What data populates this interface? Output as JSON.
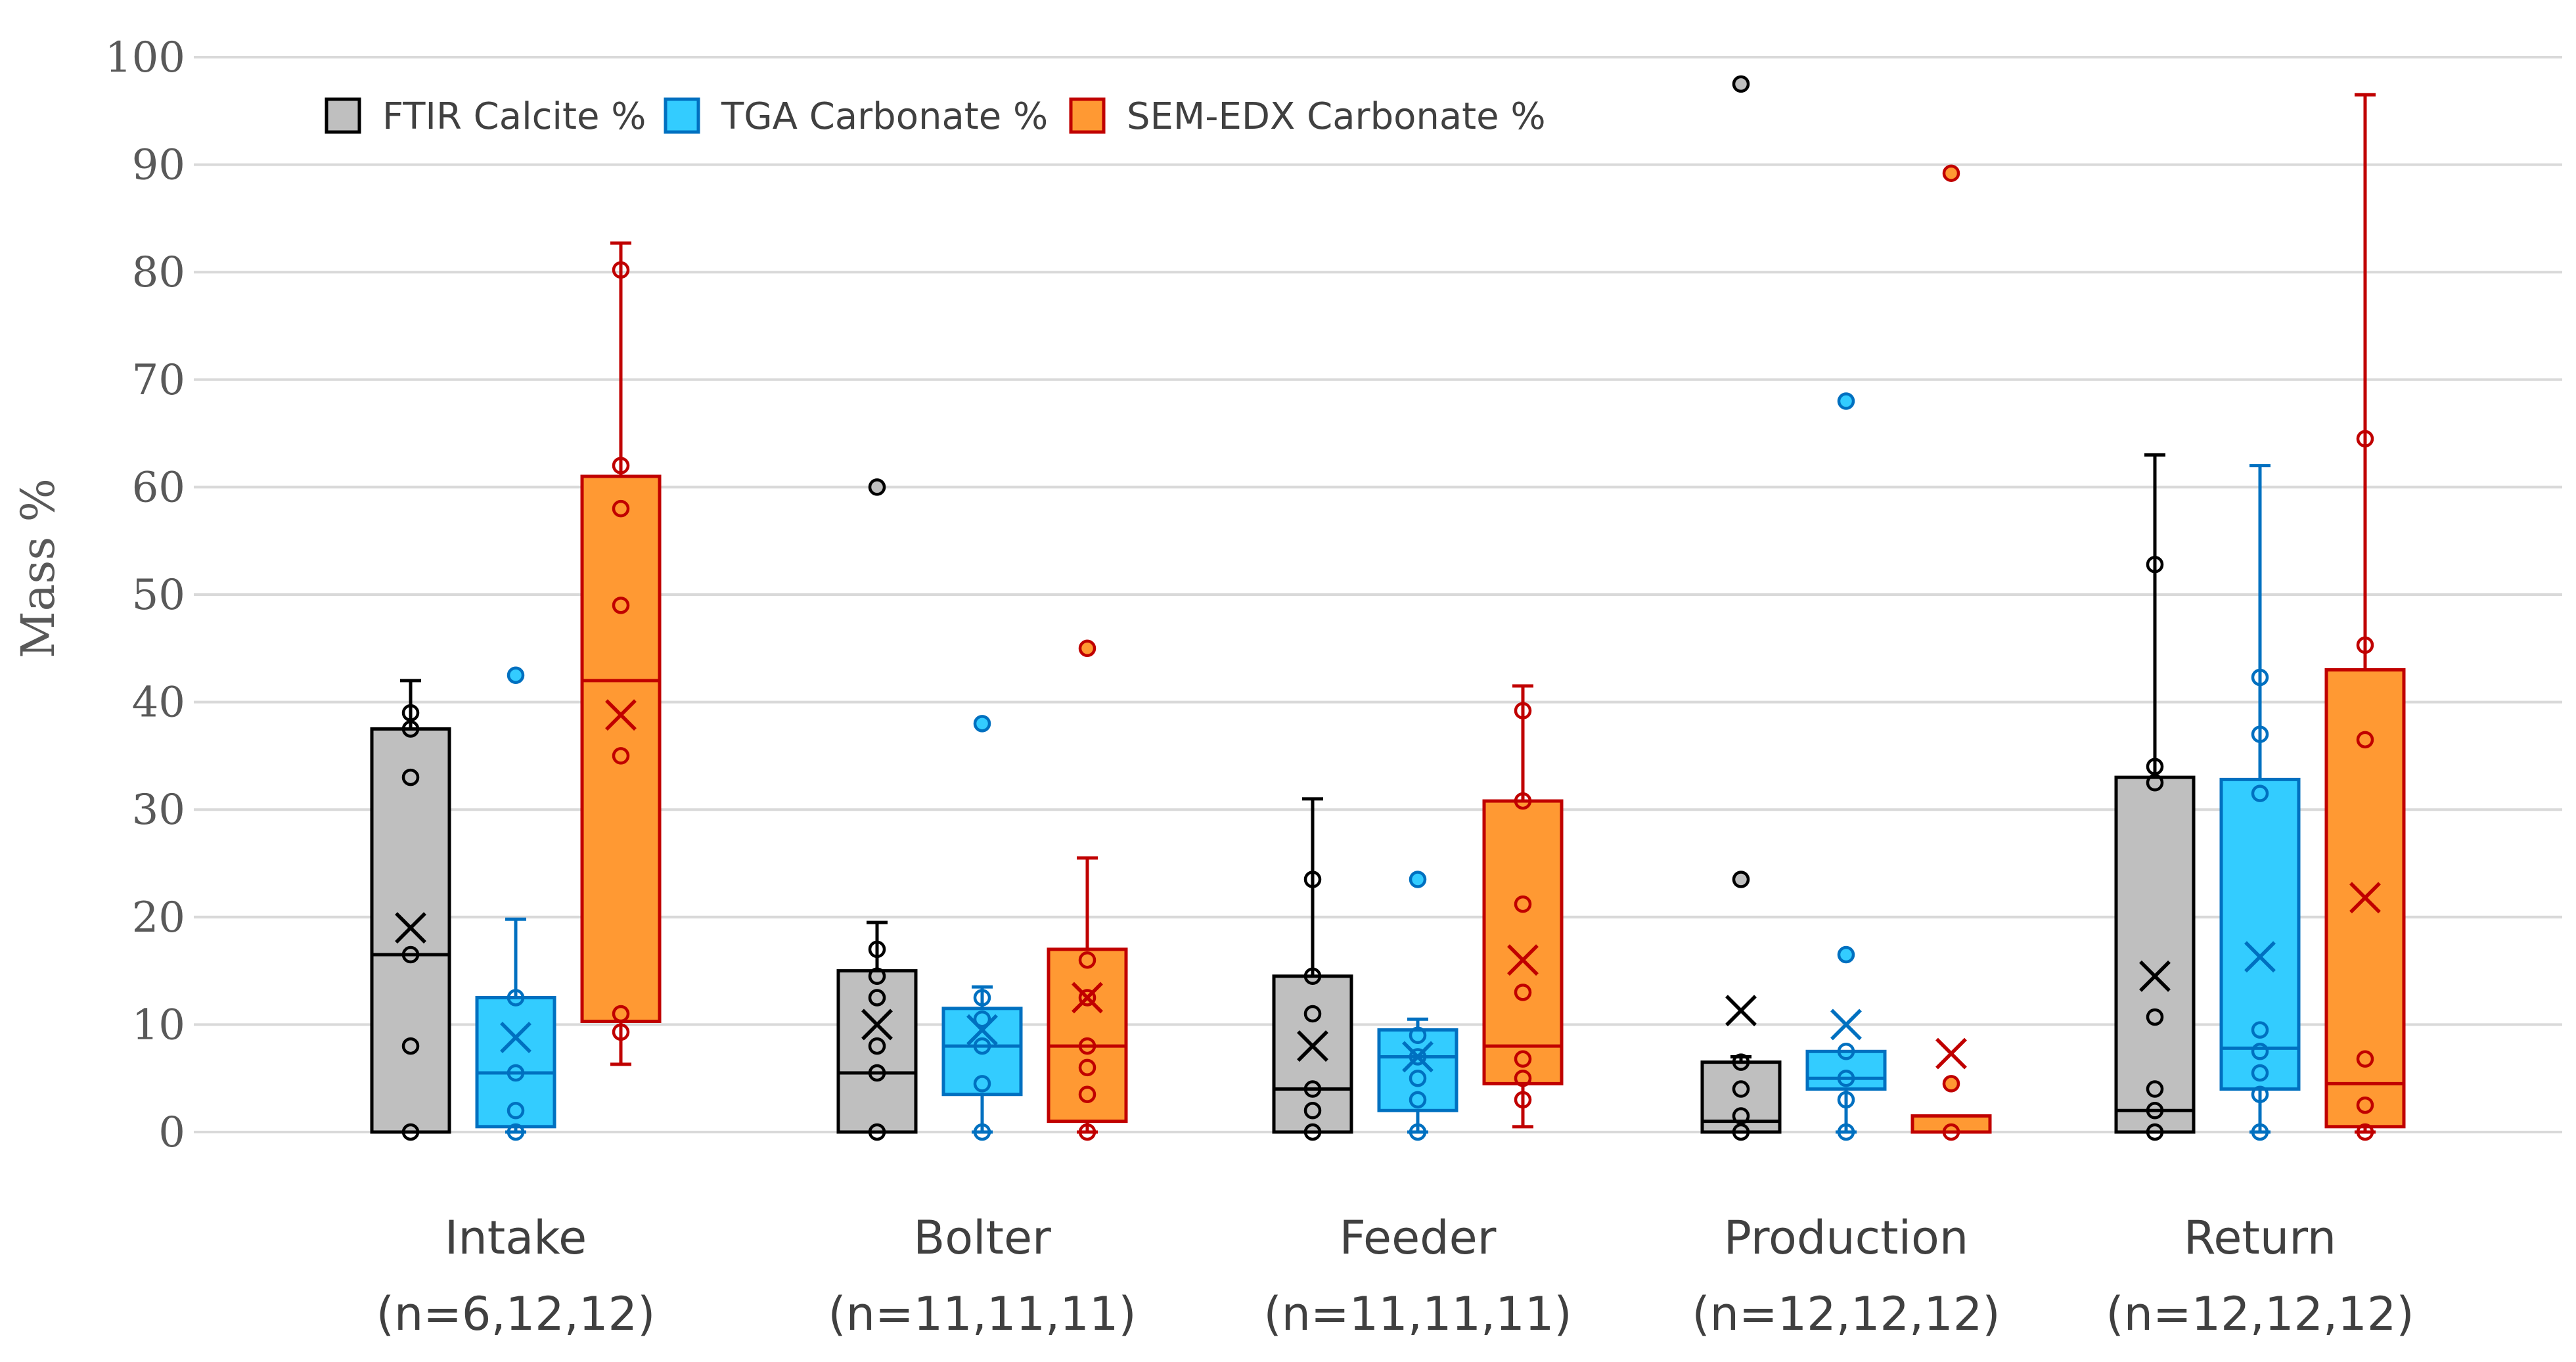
{
  "chart_data": {
    "type": "box",
    "title": "",
    "xlabel": "",
    "ylabel": "Mass %",
    "ylim": [
      0,
      100
    ],
    "yticks": [
      0,
      10,
      20,
      30,
      40,
      50,
      60,
      70,
      80,
      90,
      100
    ],
    "grid": true,
    "legend_position": "top-left",
    "categories": [
      {
        "name": "Intake",
        "n_label": "(n=6,12,12)"
      },
      {
        "name": "Bolter",
        "n_label": "(n=11,11,11)"
      },
      {
        "name": "Feeder",
        "n_label": "(n=11,11,11)"
      },
      {
        "name": "Production",
        "n_label": "(n=12,12,12)"
      },
      {
        "name": "Return",
        "n_label": "(n=12,12,12)"
      }
    ],
    "series": [
      {
        "name": "FTIR Calcite %",
        "fill": "#bfbfbf",
        "stroke": "#000000",
        "boxes": [
          {
            "q1": 0,
            "median": 16.5,
            "q3": 37.5,
            "whisker_low": 0,
            "whisker_high": 42,
            "mean": 19,
            "points": [
              0,
              8,
              16.5,
              33,
              37.5,
              39
            ],
            "outliers": []
          },
          {
            "q1": 0,
            "median": 5.5,
            "q3": 15,
            "whisker_low": 0,
            "whisker_high": 19.5,
            "mean": 10,
            "points": [
              0,
              5.5,
              8,
              12.5,
              14.5,
              17
            ],
            "outliers": [
              60
            ]
          },
          {
            "q1": 0,
            "median": 4,
            "q3": 14.5,
            "whisker_low": 0,
            "whisker_high": 31,
            "mean": 8,
            "points": [
              0,
              2,
              4,
              11,
              14.5,
              23.5
            ],
            "outliers": []
          },
          {
            "q1": 0,
            "median": 1,
            "q3": 6.5,
            "whisker_low": 0,
            "whisker_high": 7,
            "mean": 11.3,
            "points": [
              0,
              1.5,
              4,
              6.5
            ],
            "outliers": [
              23.5,
              97.5
            ]
          },
          {
            "q1": 0,
            "median": 2,
            "q3": 33,
            "whisker_low": 0,
            "whisker_high": 63,
            "mean": 14.5,
            "points": [
              0,
              2,
              4,
              10.7,
              32.5,
              34,
              52.8
            ],
            "outliers": []
          }
        ]
      },
      {
        "name": "TGA Carbonate %",
        "fill": "#33ccff",
        "stroke": "#0070c0",
        "boxes": [
          {
            "q1": 0.5,
            "median": 5.5,
            "q3": 12.5,
            "whisker_low": 0,
            "whisker_high": 19.8,
            "mean": 8.8,
            "points": [
              0,
              2,
              5.5,
              12.5
            ],
            "outliers": [
              42.5
            ]
          },
          {
            "q1": 3.5,
            "median": 8,
            "q3": 11.5,
            "whisker_low": 0,
            "whisker_high": 13.5,
            "mean": 9.5,
            "points": [
              0,
              4.5,
              8,
              10.5,
              12.5
            ],
            "outliers": [
              38
            ]
          },
          {
            "q1": 2,
            "median": 7,
            "q3": 9.5,
            "whisker_low": 0,
            "whisker_high": 10.5,
            "mean": 7,
            "points": [
              0,
              3,
              5,
              7,
              9
            ],
            "outliers": [
              23.5
            ]
          },
          {
            "q1": 4,
            "median": 5,
            "q3": 7.5,
            "whisker_low": 0,
            "whisker_high": 7.5,
            "mean": 10,
            "points": [
              0,
              3,
              5,
              7.5
            ],
            "outliers": [
              16.5,
              68
            ]
          },
          {
            "q1": 4,
            "median": 7.8,
            "q3": 32.8,
            "whisker_low": 0,
            "whisker_high": 62,
            "mean": 16.3,
            "points": [
              0,
              3.5,
              5.5,
              7.5,
              9.5,
              31.5,
              37,
              42.3
            ],
            "outliers": []
          }
        ]
      },
      {
        "name": "SEM-EDX Carbonate %",
        "fill": "#ff9933",
        "stroke": "#c00000",
        "boxes": [
          {
            "q1": 10.3,
            "median": 42,
            "q3": 61,
            "whisker_low": 6.3,
            "whisker_high": 82.7,
            "mean": 38.8,
            "points": [
              9.3,
              11,
              35,
              49,
              58,
              62,
              80.2
            ],
            "outliers": []
          },
          {
            "q1": 1,
            "median": 8,
            "q3": 17,
            "whisker_low": 0,
            "whisker_high": 25.5,
            "mean": 12.5,
            "points": [
              0,
              3.5,
              6,
              8,
              12.5,
              16
            ],
            "outliers": [
              45
            ]
          },
          {
            "q1": 4.5,
            "median": 8,
            "q3": 30.8,
            "whisker_low": 0.5,
            "whisker_high": 41.5,
            "mean": 16,
            "points": [
              3,
              5,
              6.8,
              13,
              21.2,
              30.8,
              39.2
            ],
            "outliers": []
          },
          {
            "q1": 0,
            "median": 0,
            "q3": 1.5,
            "whisker_low": 0,
            "whisker_high": 1.5,
            "mean": 7.3,
            "points": [
              0
            ],
            "outliers": [
              4.5,
              89.2
            ]
          },
          {
            "q1": 0.5,
            "median": 4.5,
            "q3": 43,
            "whisker_low": 0,
            "whisker_high": 96.5,
            "mean": 21.8,
            "points": [
              0,
              2.5,
              6.8,
              36.5,
              45.3,
              64.5
            ],
            "outliers": []
          }
        ]
      }
    ]
  }
}
